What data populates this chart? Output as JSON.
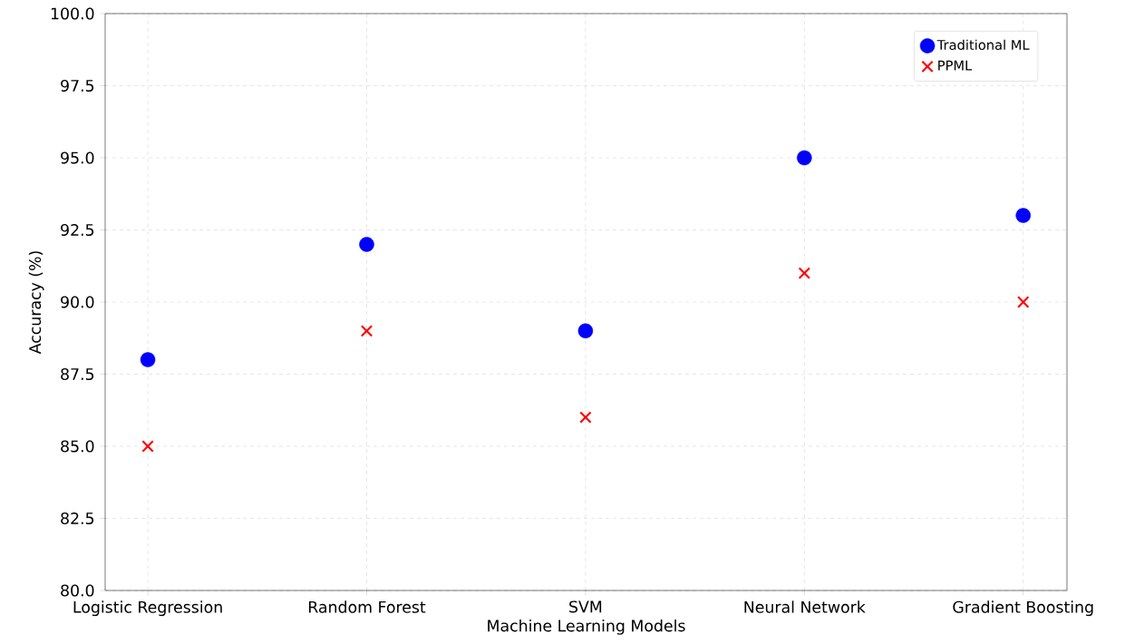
{
  "chart_data": {
    "type": "scatter",
    "xlabel": "Machine Learning Models",
    "ylabel": "Accuracy (%)",
    "categories": [
      "Logistic Regression",
      "Random Forest",
      "SVM",
      "Neural Network",
      "Gradient Boosting"
    ],
    "series": [
      {
        "name": "Traditional ML",
        "color": "#0000ff",
        "marker": "circle",
        "values": [
          88,
          92,
          89,
          95,
          93
        ]
      },
      {
        "name": "PPML",
        "color": "#ff0000",
        "marker": "cross",
        "values": [
          85,
          89,
          86,
          91,
          90
        ]
      }
    ],
    "ylim": [
      80,
      100
    ],
    "yticks": [
      {
        "value": 80,
        "label": "80.0"
      },
      {
        "value": 82.5,
        "label": "82.5"
      },
      {
        "value": 85,
        "label": "85.0"
      },
      {
        "value": 87.5,
        "label": "87.5"
      },
      {
        "value": 90,
        "label": "90.0"
      },
      {
        "value": 92.5,
        "label": "92.5"
      },
      {
        "value": 95,
        "label": "95.0"
      },
      {
        "value": 97.5,
        "label": "97.5"
      },
      {
        "value": 100,
        "label": "100.0"
      }
    ],
    "grid": true,
    "legend": "top right"
  }
}
